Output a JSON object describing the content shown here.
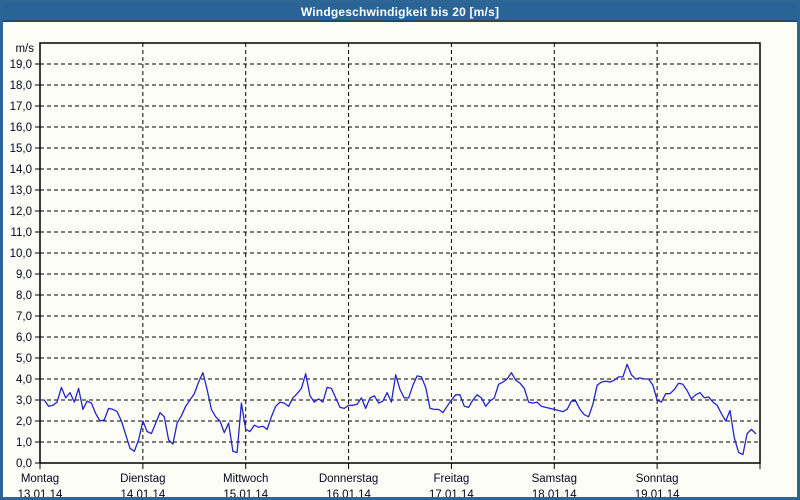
{
  "window": {
    "title": "Windgeschwindigkeit bis 20 [m/s]"
  },
  "chart_data": {
    "type": "line",
    "title": "Windgeschwindigkeit bis 20 [m/s]",
    "xlabel": "",
    "ylabel": "m/s",
    "unit_label": "m/s",
    "ylim": [
      0,
      20
    ],
    "y_tick_labels": [
      "0,0",
      "1,0",
      "2,0",
      "3,0",
      "4,0",
      "5,0",
      "6,0",
      "7,0",
      "8,0",
      "9,0",
      "10,0",
      "11,0",
      "12,0",
      "13,0",
      "14,0",
      "15,0",
      "16,0",
      "17,0",
      "18,0",
      "19,0"
    ],
    "x_days": [
      {
        "day": "Montag",
        "date": "13.01.14"
      },
      {
        "day": "Dienstag",
        "date": "14.01.14"
      },
      {
        "day": "Mittwoch",
        "date": "15.01.14"
      },
      {
        "day": "Donnerstag",
        "date": "16.01.14"
      },
      {
        "day": "Freitag",
        "date": "17.01.14"
      },
      {
        "day": "Samstag",
        "date": "18.01.14"
      },
      {
        "day": "Sonntag",
        "date": "19.01.14"
      }
    ],
    "points_per_day": 24,
    "grid": "dashed-black",
    "legend": "none",
    "series": [
      {
        "name": "Windgeschwindigkeit",
        "color": "#2424c8",
        "values": [
          3.0,
          3.0,
          2.7,
          2.75,
          2.9,
          3.6,
          3.1,
          3.35,
          2.9,
          3.55,
          2.55,
          2.95,
          2.85,
          2.35,
          2.0,
          2.05,
          2.6,
          2.55,
          2.45,
          2.0,
          1.35,
          0.7,
          0.55,
          1.1,
          2.0,
          1.5,
          1.4,
          1.9,
          2.4,
          2.2,
          1.1,
          0.9,
          1.9,
          2.25,
          2.7,
          3.0,
          3.3,
          3.85,
          4.3,
          3.5,
          2.55,
          2.2,
          2.0,
          1.45,
          1.9,
          0.55,
          0.5,
          2.85,
          1.6,
          1.5,
          1.8,
          1.7,
          1.75,
          1.6,
          2.2,
          2.7,
          2.9,
          2.85,
          2.7,
          3.1,
          3.3,
          3.55,
          4.25,
          3.2,
          2.9,
          3.05,
          2.9,
          3.6,
          3.55,
          3.1,
          2.65,
          2.6,
          2.75,
          2.75,
          2.8,
          3.1,
          2.6,
          3.1,
          3.2,
          2.85,
          2.95,
          3.35,
          2.9,
          4.2,
          3.5,
          3.1,
          3.1,
          3.7,
          4.15,
          4.1,
          3.6,
          2.6,
          2.55,
          2.55,
          2.4,
          2.7,
          3.0,
          3.25,
          3.25,
          2.7,
          2.65,
          3.0,
          3.25,
          3.1,
          2.7,
          2.95,
          3.1,
          3.75,
          3.85,
          4.0,
          4.3,
          3.95,
          3.8,
          3.55,
          2.9,
          2.85,
          2.9,
          2.7,
          2.65,
          2.6,
          2.55,
          2.5,
          2.45,
          2.55,
          2.95,
          2.95,
          2.55,
          2.3,
          2.2,
          2.8,
          3.7,
          3.85,
          3.9,
          3.85,
          3.95,
          4.1,
          4.1,
          4.7,
          4.2,
          4.0,
          4.05,
          4.0,
          4.0,
          3.7,
          3.0,
          2.9,
          3.3,
          3.3,
          3.5,
          3.8,
          3.75,
          3.45,
          3.05,
          3.25,
          3.35,
          3.1,
          3.15,
          2.9,
          2.75,
          2.35,
          2.0,
          2.5,
          1.2,
          0.5,
          0.4,
          1.4,
          1.6,
          1.4
        ]
      }
    ]
  },
  "colors": {
    "frame_border": "#2d6595",
    "titlebar_bg": "#286496",
    "background": "#fdfdf7",
    "axis": "#000000",
    "line": "#2424c8",
    "label_text": "#05051e"
  }
}
